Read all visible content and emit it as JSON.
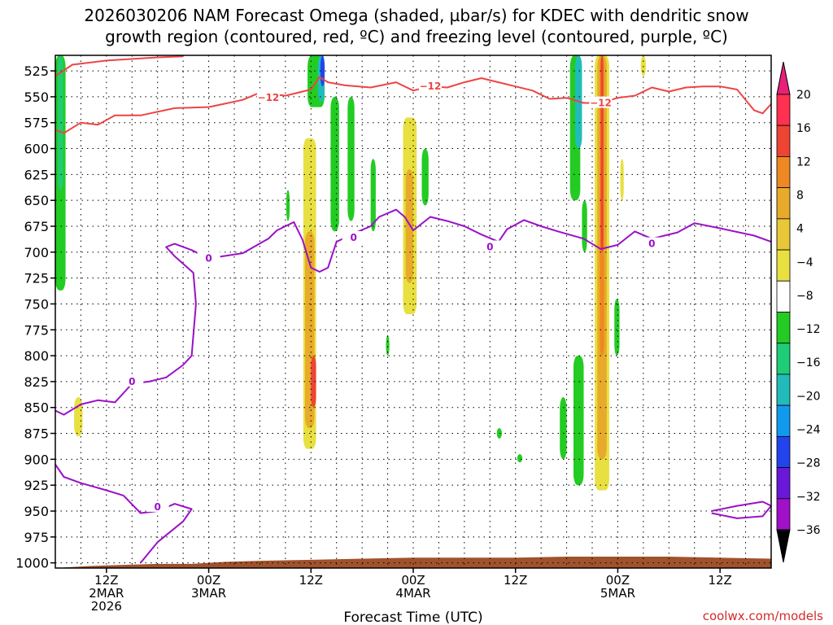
{
  "title": {
    "line1": "2026030206 NAM Forecast Omega (shaded, µbar/s) for KDEC with dendritic snow",
    "line2": "growth region (contoured, red, ºC) and freezing level (contoured, purple, ºC)"
  },
  "credit": "coolwx.com/models",
  "colors": {
    "dgz_contour": "#ee4444",
    "freezing_contour": "#9a10c8",
    "terrain": "#a0522d"
  },
  "chart_data": {
    "type": "heatmap",
    "xlabel": "Forecast Time (UTC)",
    "y_axis": {
      "range": [
        510,
        1005
      ],
      "inverted": true,
      "ticks": [
        525,
        550,
        575,
        600,
        625,
        650,
        675,
        700,
        725,
        750,
        775,
        800,
        825,
        850,
        875,
        900,
        925,
        950,
        975,
        1000
      ]
    },
    "x_axis": {
      "range_hours": [
        0,
        84
      ],
      "ticks": [
        {
          "h": 6,
          "line1": "12Z",
          "line2": "2MAR",
          "line3": "2026"
        },
        {
          "h": 18,
          "line1": "00Z",
          "line2": "3MAR",
          "line3": ""
        },
        {
          "h": 30,
          "line1": "12Z",
          "line2": "",
          "line3": ""
        },
        {
          "h": 42,
          "line1": "00Z",
          "line2": "4MAR",
          "line3": ""
        },
        {
          "h": 54,
          "line1": "12Z",
          "line2": "",
          "line3": ""
        },
        {
          "h": 66,
          "line1": "00Z",
          "line2": "5MAR",
          "line3": ""
        },
        {
          "h": 78,
          "line1": "12Z",
          "line2": "",
          "line3": ""
        }
      ]
    },
    "colorbar": {
      "labels": [
        "20",
        "16",
        "12",
        "8",
        "4",
        "−4",
        "−8",
        "−12",
        "−16",
        "−20",
        "−24",
        "−28",
        "−32",
        "−36"
      ],
      "colors": [
        "#ff3050",
        "#ee4433",
        "#ee8822",
        "#e8aa2a",
        "#e8c838",
        "#e8e040",
        "#ffffff",
        "#22cc22",
        "#1fcc77",
        "#22bbbb",
        "#1199ee",
        "#2244ee",
        "#6a18d8",
        "#a010c8",
        "#a8a8a8"
      ],
      "top_cap": "#e8207a",
      "bottom_cap": "#000000"
    },
    "omega_regions": [
      {
        "name": "green-left-1",
        "color": "#22cc22",
        "hourA": 0.0,
        "hourB": 1.2,
        "pTop": 510,
        "pBot": 737
      },
      {
        "name": "green-left-2",
        "color": "#1fcc77",
        "hourA": 0.3,
        "hourB": 0.9,
        "pTop": 510,
        "pBot": 640
      },
      {
        "name": "yellow-early",
        "color": "#e8e040",
        "hourA": 2.2,
        "hourB": 3.2,
        "pTop": 840,
        "pBot": 878
      },
      {
        "name": "green-12z-a",
        "color": "#22cc22",
        "hourA": 29.6,
        "hourB": 31.6,
        "pTop": 510,
        "pBot": 560
      },
      {
        "name": "cyan-12z",
        "color": "#22bbbb",
        "hourA": 30.8,
        "hourB": 31.6,
        "pTop": 510,
        "pBot": 555
      },
      {
        "name": "blue-12z",
        "color": "#2244ee",
        "hourA": 31.1,
        "hourB": 31.6,
        "pTop": 510,
        "pBot": 540
      },
      {
        "name": "green-12z-b",
        "color": "#22cc22",
        "hourA": 32.3,
        "hourB": 33.3,
        "pTop": 550,
        "pBot": 680
      },
      {
        "name": "green-12z-c",
        "color": "#22cc22",
        "hourA": 34.3,
        "hourB": 35.1,
        "pTop": 550,
        "pBot": 670
      },
      {
        "name": "green-12z-d",
        "color": "#22cc22",
        "hourA": 27.1,
        "hourB": 27.5,
        "pTop": 640,
        "pBot": 670
      },
      {
        "name": "green-12z-e",
        "color": "#22cc22",
        "hourA": 37.0,
        "hourB": 37.6,
        "pTop": 610,
        "pBot": 680
      },
      {
        "name": "yellow-12z",
        "color": "#e8e040",
        "hourA": 29.1,
        "hourB": 30.6,
        "pTop": 590,
        "pBot": 890
      },
      {
        "name": "orange-12z",
        "color": "#e8aa2a",
        "hourA": 29.3,
        "hourB": 30.4,
        "pTop": 680,
        "pBot": 870
      },
      {
        "name": "red-12z",
        "color": "#ee4433",
        "hourA": 30.0,
        "hourB": 30.6,
        "pTop": 800,
        "pBot": 850
      },
      {
        "name": "yellow-00z-4mar",
        "color": "#e8e040",
        "hourA": 40.8,
        "hourB": 42.4,
        "pTop": 570,
        "pBot": 760
      },
      {
        "name": "orange-00z-4mar",
        "color": "#e8aa2a",
        "hourA": 41.1,
        "hourB": 42.0,
        "pTop": 620,
        "pBot": 730
      },
      {
        "name": "green-4mar",
        "color": "#22cc22",
        "hourA": 43.0,
        "hourB": 43.8,
        "pTop": 600,
        "pBot": 655
      },
      {
        "name": "green-4mar-b",
        "color": "#22cc22",
        "hourA": 38.8,
        "hourB": 39.2,
        "pTop": 780,
        "pBot": 800
      },
      {
        "name": "green-4mar-c",
        "color": "#22cc22",
        "hourA": 51.8,
        "hourB": 52.4,
        "pTop": 870,
        "pBot": 880
      },
      {
        "name": "green-4mar-d",
        "color": "#22cc22",
        "hourA": 54.2,
        "hourB": 54.8,
        "pTop": 895,
        "pBot": 903
      },
      {
        "name": "green-5mar-a",
        "color": "#22cc22",
        "hourA": 60.4,
        "hourB": 61.6,
        "pTop": 510,
        "pBot": 650
      },
      {
        "name": "cyan-5mar",
        "color": "#22bbbb",
        "hourA": 61.0,
        "hourB": 61.8,
        "pTop": 510,
        "pBot": 600
      },
      {
        "name": "green-5mar-b",
        "color": "#22cc22",
        "hourA": 59.2,
        "hourB": 60.0,
        "pTop": 840,
        "pBot": 900
      },
      {
        "name": "green-5mar-c",
        "color": "#22cc22",
        "hourA": 60.8,
        "hourB": 62.0,
        "pTop": 800,
        "pBot": 925
      },
      {
        "name": "green-5mar-d",
        "color": "#22cc22",
        "hourA": 65.6,
        "hourB": 66.2,
        "pTop": 745,
        "pBot": 800
      },
      {
        "name": "green-5mar-e",
        "color": "#22cc22",
        "hourA": 61.8,
        "hourB": 62.4,
        "pTop": 650,
        "pBot": 700
      },
      {
        "name": "yellow-5mar",
        "color": "#e8e040",
        "hourA": 63.3,
        "hourB": 65.0,
        "pTop": 510,
        "pBot": 930
      },
      {
        "name": "orange-5mar",
        "color": "#e8aa2a",
        "hourA": 63.6,
        "hourB": 64.7,
        "pTop": 510,
        "pBot": 900
      },
      {
        "name": "deeporange-5mar",
        "color": "#ee8822",
        "hourA": 63.9,
        "hourB": 64.4,
        "pTop": 510,
        "pBot": 800
      },
      {
        "name": "red-5mar",
        "color": "#ee4433",
        "hourA": 64.0,
        "hourB": 64.3,
        "pTop": 510,
        "pBot": 700
      },
      {
        "name": "yellow-5mar-b",
        "color": "#e8e040",
        "hourA": 68.7,
        "hourB": 69.3,
        "pTop": 510,
        "pBot": 530
      },
      {
        "name": "yellow-5mar-c",
        "color": "#e8e040",
        "hourA": 66.3,
        "hourB": 66.7,
        "pTop": 610,
        "pBot": 650
      }
    ],
    "dgz_contour": {
      "label": "−12",
      "upper_line": [
        [
          0,
          530
        ],
        [
          2,
          519
        ],
        [
          6,
          515
        ],
        [
          12,
          512
        ],
        [
          15,
          511
        ]
      ],
      "lower_line": [
        [
          0,
          582
        ],
        [
          1,
          585
        ],
        [
          3,
          575
        ],
        [
          5,
          577
        ],
        [
          7,
          568
        ],
        [
          10,
          568
        ],
        [
          14,
          561
        ],
        [
          18,
          560
        ],
        [
          22,
          553
        ],
        [
          24,
          546
        ],
        [
          27,
          549
        ],
        [
          30,
          543
        ],
        [
          31,
          531
        ],
        [
          32,
          536
        ],
        [
          34,
          539
        ],
        [
          37,
          541
        ],
        [
          40,
          536
        ],
        [
          42,
          544
        ],
        [
          44,
          540
        ],
        [
          46,
          541
        ],
        [
          48,
          536
        ],
        [
          50,
          532
        ],
        [
          52,
          536
        ],
        [
          54,
          540
        ],
        [
          56,
          544
        ],
        [
          58,
          552
        ],
        [
          60,
          551
        ],
        [
          62,
          556
        ],
        [
          64,
          556
        ],
        [
          66,
          551
        ],
        [
          68,
          549
        ],
        [
          70,
          541
        ],
        [
          72,
          545
        ],
        [
          74,
          541
        ],
        [
          76,
          540
        ],
        [
          78,
          540
        ],
        [
          80,
          543
        ],
        [
          82,
          563
        ],
        [
          83,
          566
        ],
        [
          84,
          557
        ]
      ],
      "label_points": [
        [
          25,
          551
        ],
        [
          44,
          540
        ],
        [
          64,
          556
        ]
      ]
    },
    "freezing_contour": {
      "label": "0",
      "main_line": [
        [
          0,
          853
        ],
        [
          1,
          857
        ],
        [
          3,
          847
        ],
        [
          5,
          843
        ],
        [
          7,
          845
        ],
        [
          9,
          827
        ],
        [
          11,
          825
        ],
        [
          13,
          821
        ],
        [
          15,
          809
        ],
        [
          16,
          800
        ],
        [
          16.5,
          750
        ],
        [
          16.2,
          720
        ],
        [
          14,
          704
        ],
        [
          13,
          695
        ],
        [
          14,
          692
        ],
        [
          16,
          698
        ],
        [
          18,
          706
        ],
        [
          22,
          701
        ],
        [
          25,
          687
        ],
        [
          26,
          679
        ],
        [
          28,
          671
        ],
        [
          29,
          688
        ],
        [
          30,
          715
        ],
        [
          31,
          719
        ],
        [
          32,
          715
        ],
        [
          33,
          690
        ],
        [
          35,
          682
        ],
        [
          37,
          675
        ],
        [
          38,
          666
        ],
        [
          40,
          659
        ],
        [
          41,
          666
        ],
        [
          42,
          679
        ],
        [
          44,
          666
        ],
        [
          46,
          670
        ],
        [
          48,
          675
        ],
        [
          50,
          683
        ],
        [
          52,
          690
        ],
        [
          53,
          678
        ],
        [
          55,
          669
        ],
        [
          57,
          675
        ],
        [
          59,
          680
        ],
        [
          62,
          687
        ],
        [
          64,
          697
        ],
        [
          66,
          693
        ],
        [
          68,
          680
        ],
        [
          70,
          687
        ],
        [
          73,
          681
        ],
        [
          75,
          672
        ],
        [
          78,
          677
        ],
        [
          82,
          684
        ],
        [
          84,
          690
        ]
      ],
      "lower_line": [
        [
          0,
          905
        ],
        [
          1,
          917
        ],
        [
          3,
          923
        ],
        [
          6,
          930
        ],
        [
          8,
          935
        ],
        [
          10,
          952
        ],
        [
          12,
          950
        ],
        [
          14,
          943
        ],
        [
          16,
          948
        ],
        [
          15,
          960
        ],
        [
          12,
          980
        ],
        [
          10,
          1000
        ]
      ],
      "small_loop": [
        [
          77,
          950
        ],
        [
          80,
          945
        ],
        [
          83,
          941
        ],
        [
          84,
          945
        ],
        [
          83,
          955
        ],
        [
          80,
          957
        ],
        [
          77,
          952
        ]
      ],
      "label_points": [
        [
          18,
          706
        ],
        [
          35,
          686
        ],
        [
          51,
          695
        ],
        [
          70,
          692
        ],
        [
          9,
          825
        ],
        [
          12,
          946
        ]
      ]
    },
    "terrain": [
      [
        0,
        1005
      ],
      [
        4,
        1003
      ],
      [
        8,
        1002
      ],
      [
        12,
        1001
      ],
      [
        16,
        1001
      ],
      [
        20,
        999
      ],
      [
        24,
        998
      ],
      [
        30,
        997
      ],
      [
        36,
        996
      ],
      [
        42,
        995
      ],
      [
        48,
        995
      ],
      [
        54,
        995
      ],
      [
        60,
        994
      ],
      [
        66,
        994
      ],
      [
        72,
        994
      ],
      [
        78,
        995
      ],
      [
        84,
        996
      ]
    ]
  }
}
